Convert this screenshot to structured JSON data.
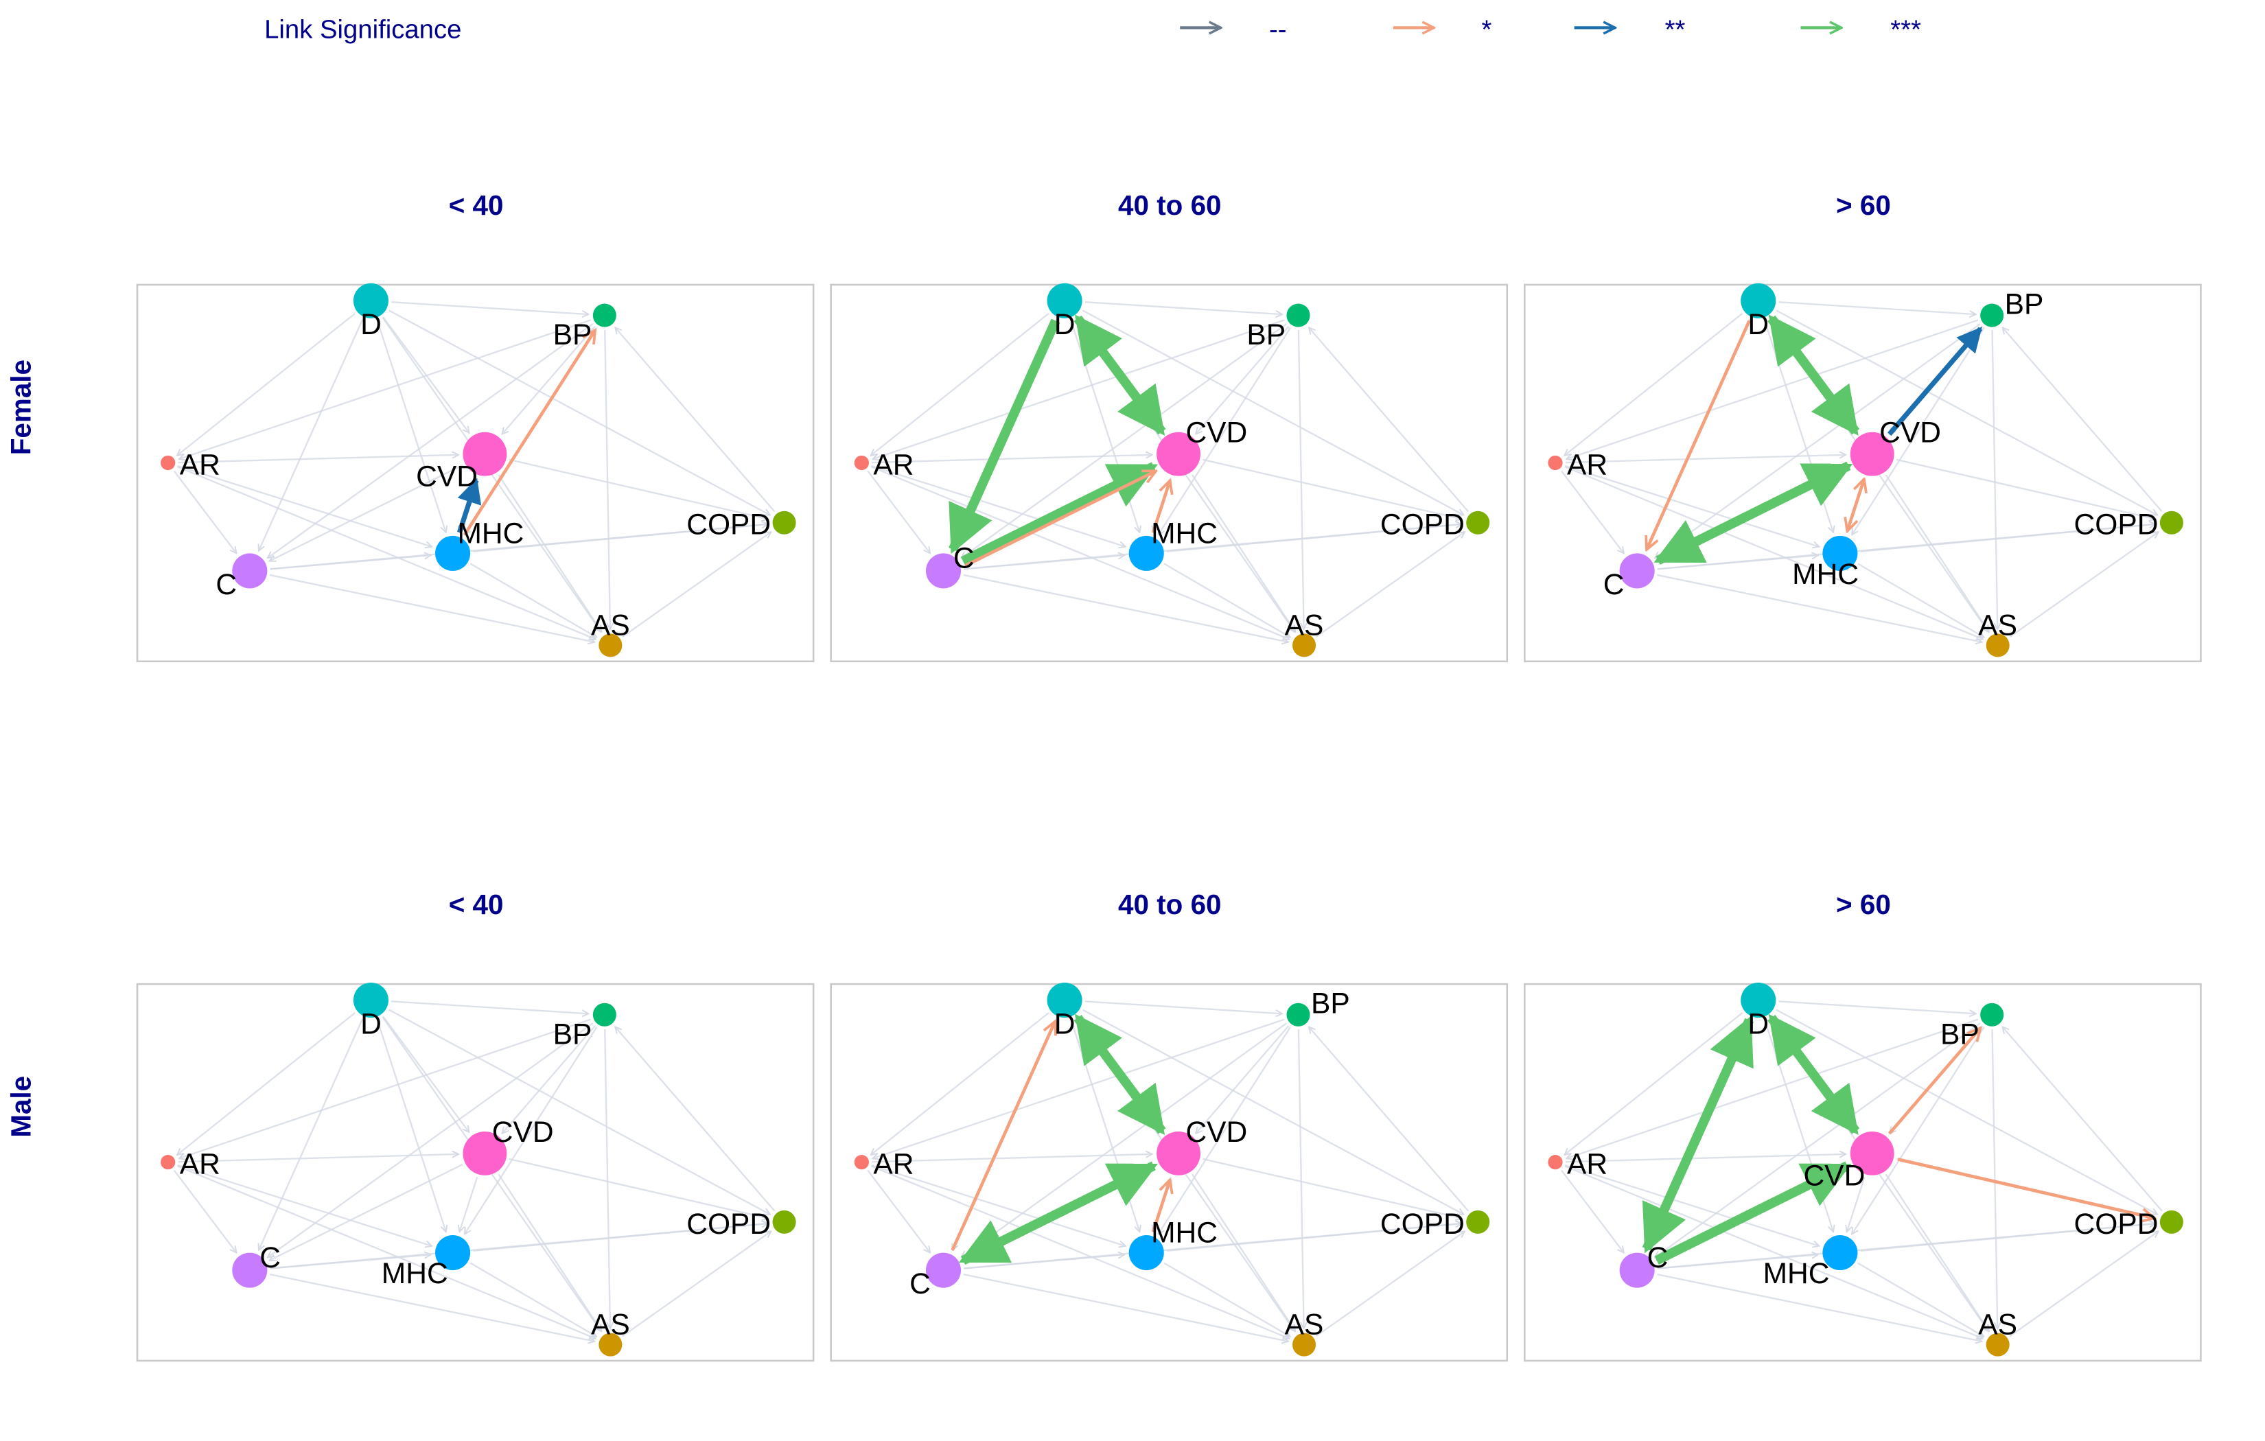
{
  "legend": {
    "title": "Link Significance",
    "items": [
      {
        "label": "--",
        "color": "#6b7b8c"
      },
      {
        "label": "*",
        "color": "#f4a07c"
      },
      {
        "label": "**",
        "color": "#1b6fae"
      },
      {
        "label": "***",
        "color": "#5dc66a"
      }
    ]
  },
  "colors": {
    "header": "#00008b",
    "background_edge": "#d4d9e3",
    "panel_border": "#c8c8c8"
  },
  "rows": [
    {
      "label": "Female",
      "column_titles": [
        "< 40",
        "40 to 60",
        "> 60"
      ]
    },
    {
      "label": "Male",
      "column_titles": [
        "< 40",
        "40 to 60",
        "> 60"
      ]
    }
  ],
  "nodes": [
    {
      "id": "D",
      "label": "D",
      "color": "#00bfc4",
      "size": "large"
    },
    {
      "id": "BP",
      "label": "BP",
      "color": "#00ba6f",
      "size": "medium"
    },
    {
      "id": "AR",
      "label": "AR",
      "color": "#f8766d",
      "size": "small"
    },
    {
      "id": "CVD",
      "label": "CVD",
      "color": "#ff61cc",
      "size": "xlarge"
    },
    {
      "id": "COPD",
      "label": "COPD",
      "color": "#7cae00",
      "size": "medium"
    },
    {
      "id": "C",
      "label": "C",
      "color": "#c77cff",
      "size": "large"
    },
    {
      "id": "MHC",
      "label": "MHC",
      "color": "#00a9ff",
      "size": "large"
    },
    {
      "id": "AS",
      "label": "AS",
      "color": "#cd9600",
      "size": "medium"
    }
  ],
  "panels": [
    {
      "row": 0,
      "col": 0,
      "links": [
        {
          "from": "MHC",
          "to": "CVD",
          "sig": "**"
        },
        {
          "from": "MHC",
          "to": "BP",
          "sig": "*"
        }
      ]
    },
    {
      "row": 0,
      "col": 1,
      "links": [
        {
          "from": "D",
          "to": "C",
          "sig": "***"
        },
        {
          "from": "D",
          "to": "CVD",
          "sig": "***",
          "bidirectional": true
        },
        {
          "from": "C",
          "to": "CVD",
          "sig": "***"
        },
        {
          "from": "C",
          "to": "CVD",
          "sig": "*"
        },
        {
          "from": "MHC",
          "to": "CVD",
          "sig": "*"
        }
      ]
    },
    {
      "row": 0,
      "col": 2,
      "links": [
        {
          "from": "D",
          "to": "C",
          "sig": "*"
        },
        {
          "from": "D",
          "to": "CVD",
          "sig": "***",
          "bidirectional": true
        },
        {
          "from": "CVD",
          "to": "BP",
          "sig": "**"
        },
        {
          "from": "CVD",
          "to": "C",
          "sig": "***",
          "bidirectional": true
        },
        {
          "from": "CVD",
          "to": "MHC",
          "sig": "*",
          "bidirectional": true
        }
      ]
    },
    {
      "row": 1,
      "col": 0,
      "links": []
    },
    {
      "row": 1,
      "col": 1,
      "links": [
        {
          "from": "C",
          "to": "D",
          "sig": "*"
        },
        {
          "from": "D",
          "to": "CVD",
          "sig": "***",
          "bidirectional": true
        },
        {
          "from": "C",
          "to": "CVD",
          "sig": "***",
          "bidirectional": true
        },
        {
          "from": "MHC",
          "to": "CVD",
          "sig": "*"
        }
      ]
    },
    {
      "row": 1,
      "col": 2,
      "links": [
        {
          "from": "D",
          "to": "C",
          "sig": "***",
          "bidirectional": true
        },
        {
          "from": "D",
          "to": "CVD",
          "sig": "***",
          "bidirectional": true
        },
        {
          "from": "C",
          "to": "CVD",
          "sig": "***"
        },
        {
          "from": "CVD",
          "to": "BP",
          "sig": "*"
        },
        {
          "from": "CVD",
          "to": "COPD",
          "sig": "*"
        }
      ]
    }
  ]
}
